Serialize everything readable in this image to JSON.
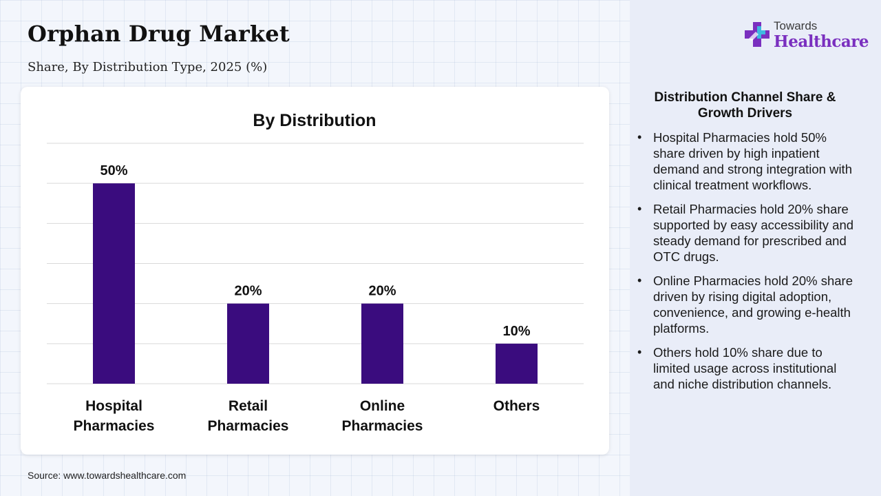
{
  "header": {
    "title": "Orphan Drug Market",
    "subtitle": "Share, By Distribution Type, 2025 (%)"
  },
  "logo": {
    "line1": "Towards",
    "line2": "Healthcare"
  },
  "chart_data": {
    "type": "bar",
    "title": "By Distribution",
    "categories": [
      [
        "Hospital",
        "Pharmacies"
      ],
      [
        "Retail",
        "Pharmacies"
      ],
      [
        "Online",
        "Pharmacies"
      ],
      [
        "Others"
      ]
    ],
    "values": [
      50,
      20,
      20,
      10
    ],
    "value_labels": [
      "50%",
      "20%",
      "20%",
      "10%"
    ],
    "ylim": [
      0,
      60
    ],
    "grid": true,
    "bar_color": "#3a0c7e",
    "xlabel": "",
    "ylabel": ""
  },
  "panel": {
    "heading": "Distribution Channel Share & Growth Drivers",
    "items": [
      "Hospital Pharmacies hold 50% share driven by high inpatient demand and strong integration with clinical treatment workflows.",
      "Retail Pharmacies hold 20% share supported by easy accessibility and steady demand for prescribed and OTC drugs.",
      "Online Pharmacies hold 20% share driven by rising digital adoption, convenience, and growing e-health platforms.",
      "Others hold 10% share due to limited usage across institutional and niche distribution channels."
    ]
  },
  "footer": {
    "source": "Source: www.towardshealthcare.com"
  }
}
